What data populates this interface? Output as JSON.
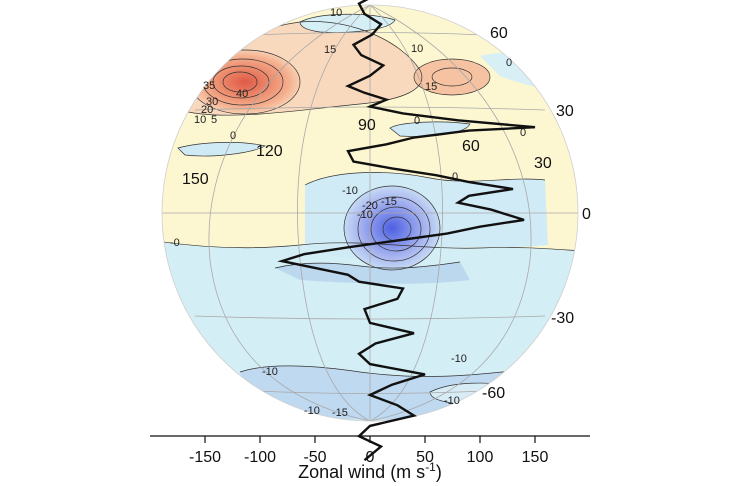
{
  "chart_data": {
    "type": "line",
    "title": "",
    "xlabel": "Zonal wind (m s⁻¹)",
    "xlabel_text": "Zonal wind (m s",
    "xlabel_sup": "-1",
    "xlabel_close": ")",
    "xlim": [
      -190,
      190
    ],
    "x_ticks": [
      -150,
      -100,
      -50,
      0,
      50,
      100,
      150
    ],
    "x_tick_labels": [
      "-150",
      "-100",
      "-50",
      "0",
      "50",
      "100",
      "150"
    ],
    "latitude_labels": [
      "60",
      "30",
      "0",
      "-30",
      "-60"
    ],
    "latitude_values": [
      60,
      30,
      0,
      -30,
      -60
    ],
    "longitude_labels": [
      "90",
      "120",
      "150",
      "60",
      "30"
    ],
    "contour_labels": [
      "10",
      "10",
      "15",
      "15",
      "35",
      "30",
      "40",
      "20",
      "10",
      "5",
      "0",
      "0",
      "0",
      "0",
      "-0",
      "-10",
      "-15",
      "-20",
      "-10",
      "-10",
      "-10",
      "-10",
      "-15",
      "-10",
      "0"
    ],
    "colors": {
      "positive": "#e8735a",
      "positive_light": "#f8d7b9",
      "pale_yellow": "#fdf6cf",
      "negative": "#5b6ee6",
      "negative_light": "#cfe9f2",
      "profile_line": "#111111"
    },
    "series": [
      {
        "points": [
          [
            10,
            88
          ],
          [
            0,
            85
          ],
          [
            -5,
            82
          ],
          [
            5,
            79
          ],
          [
            -3,
            76
          ],
          [
            10,
            73
          ],
          [
            0,
            70
          ],
          [
            -2,
            67
          ],
          [
            8,
            64
          ],
          [
            -10,
            61
          ],
          [
            -5,
            58
          ],
          [
            10,
            55
          ],
          [
            2,
            52
          ],
          [
            -15,
            49
          ],
          [
            -8,
            46
          ],
          [
            12,
            43
          ],
          [
            0,
            40
          ],
          [
            -20,
            37
          ],
          [
            -5,
            35
          ],
          [
            15,
            33
          ],
          [
            0,
            31
          ],
          [
            30,
            29
          ],
          [
            80,
            27
          ],
          [
            150,
            25
          ],
          [
            90,
            24
          ],
          [
            40,
            22
          ],
          [
            15,
            20
          ],
          [
            -20,
            18
          ],
          [
            -15,
            15
          ],
          [
            20,
            13
          ],
          [
            60,
            11
          ],
          [
            90,
            9
          ],
          [
            130,
            7
          ],
          [
            90,
            5
          ],
          [
            80,
            3
          ],
          [
            110,
            1
          ],
          [
            140,
            -2
          ],
          [
            100,
            -4
          ],
          [
            70,
            -6
          ],
          [
            -20,
            -10
          ],
          [
            -60,
            -12
          ],
          [
            -80,
            -14
          ],
          [
            -50,
            -16
          ],
          [
            -20,
            -18
          ],
          [
            -10,
            -20
          ],
          [
            30,
            -22
          ],
          [
            25,
            -25
          ],
          [
            -5,
            -28
          ],
          [
            0,
            -32
          ],
          [
            40,
            -35
          ],
          [
            5,
            -38
          ],
          [
            -10,
            -41
          ],
          [
            0,
            -44
          ],
          [
            50,
            -47
          ],
          [
            20,
            -50
          ],
          [
            0,
            -53
          ],
          [
            25,
            -56
          ],
          [
            40,
            -59
          ],
          [
            0,
            -62
          ],
          [
            -10,
            -65
          ],
          [
            10,
            -68
          ],
          [
            -5,
            -72
          ]
        ]
      }
    ]
  }
}
